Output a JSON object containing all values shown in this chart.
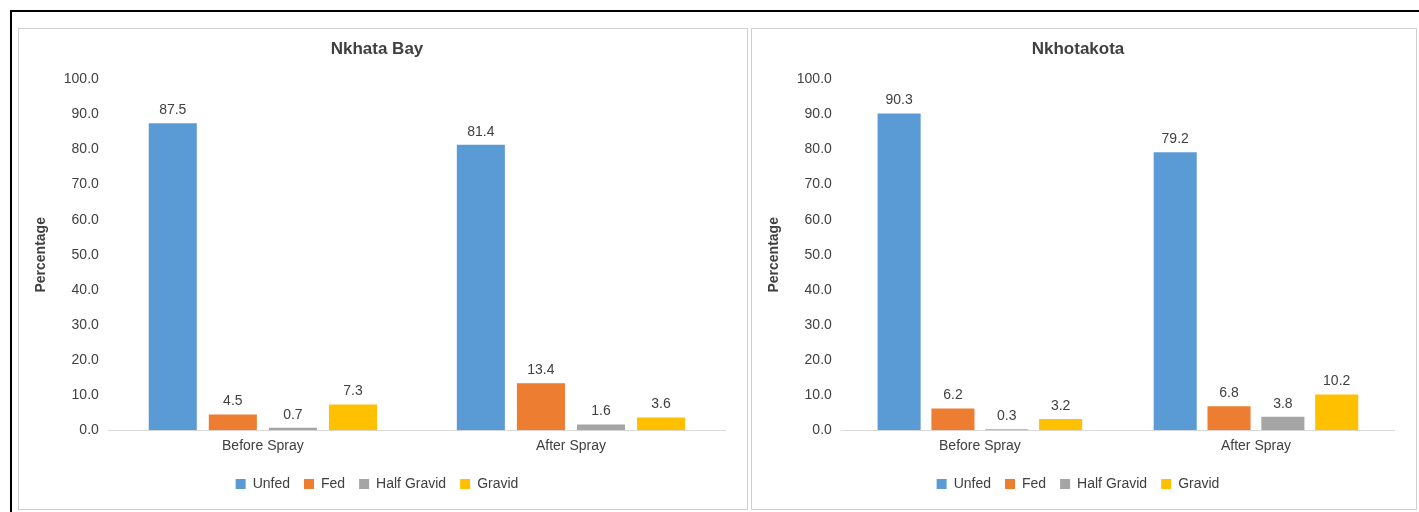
{
  "chart_data": [
    {
      "type": "bar",
      "title": "Nkhata Bay",
      "ylabel": "Percentage",
      "categories": [
        "Before Spray",
        "After Spray"
      ],
      "series": [
        {
          "name": "Unfed",
          "color": "#5b9bd5",
          "values": [
            87.5,
            81.4
          ]
        },
        {
          "name": "Fed",
          "color": "#ed7d31",
          "values": [
            4.5,
            13.4
          ]
        },
        {
          "name": "Half Gravid",
          "color": "#a5a5a5",
          "values": [
            0.7,
            1.6
          ]
        },
        {
          "name": "Gravid",
          "color": "#ffc000",
          "values": [
            7.3,
            3.6
          ]
        }
      ],
      "ylim": [
        0,
        100
      ],
      "yticks": [
        {
          "value": 0,
          "label": "0.0"
        },
        {
          "value": 10,
          "label": "10.0"
        },
        {
          "value": 20,
          "label": "20.0"
        },
        {
          "value": 30,
          "label": "30.0"
        },
        {
          "value": 40,
          "label": "40.0"
        },
        {
          "value": 50,
          "label": "50.0"
        },
        {
          "value": 60,
          "label": "60.0"
        },
        {
          "value": 70,
          "label": "70.0"
        },
        {
          "value": 80,
          "label": "80.0"
        },
        {
          "value": 90,
          "label": "90.0"
        },
        {
          "value": 100,
          "label": "100.0"
        }
      ],
      "data_labels": true,
      "legend": "bottom",
      "grid": false
    },
    {
      "type": "bar",
      "title": "Nkhotakota",
      "ylabel": "Percentage",
      "categories": [
        "Before Spray",
        "After Spray"
      ],
      "series": [
        {
          "name": "Unfed",
          "color": "#5b9bd5",
          "values": [
            90.3,
            79.2
          ]
        },
        {
          "name": "Fed",
          "color": "#ed7d31",
          "values": [
            6.2,
            6.8
          ]
        },
        {
          "name": "Half Gravid",
          "color": "#a5a5a5",
          "values": [
            0.3,
            3.8
          ]
        },
        {
          "name": "Gravid",
          "color": "#ffc000",
          "values": [
            3.2,
            10.2
          ]
        }
      ],
      "ylim": [
        0,
        100
      ],
      "yticks": [
        {
          "value": 0,
          "label": "0.0"
        },
        {
          "value": 10,
          "label": "10.0"
        },
        {
          "value": 20,
          "label": "20.0"
        },
        {
          "value": 30,
          "label": "30.0"
        },
        {
          "value": 40,
          "label": "40.0"
        },
        {
          "value": 50,
          "label": "50.0"
        },
        {
          "value": 60,
          "label": "60.0"
        },
        {
          "value": 70,
          "label": "70.0"
        },
        {
          "value": 80,
          "label": "80.0"
        },
        {
          "value": 90,
          "label": "90.0"
        },
        {
          "value": 100,
          "label": "100.0"
        }
      ],
      "data_labels": true,
      "legend": "bottom",
      "grid": false
    }
  ]
}
